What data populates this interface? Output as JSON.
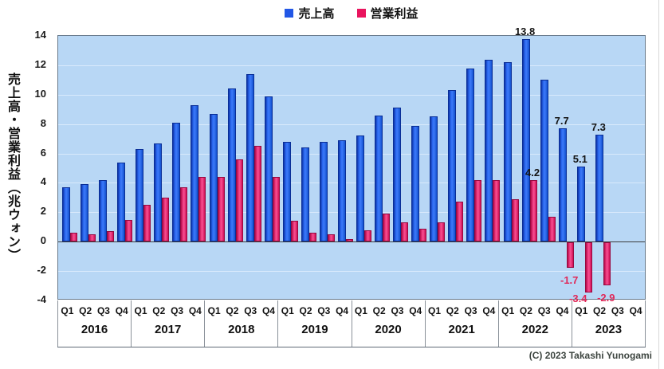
{
  "legend": {
    "items": [
      {
        "label": "売上高",
        "color": "#2257e6"
      },
      {
        "label": "営業利益",
        "color": "#e9145e"
      }
    ]
  },
  "y_axis": {
    "title": "売上高・営業利益（兆ウォン）",
    "ticks": [
      14,
      12,
      10,
      8,
      6,
      4,
      2,
      0,
      -2,
      -4
    ]
  },
  "x_axis": {
    "quarters": [
      "Q1",
      "Q2",
      "Q3",
      "Q4"
    ],
    "years": [
      "2016",
      "2017",
      "2018",
      "2019",
      "2020",
      "2021",
      "2022",
      "2023"
    ]
  },
  "chart_data": {
    "type": "bar",
    "categories": [
      "2016 Q1",
      "2016 Q2",
      "2016 Q3",
      "2016 Q4",
      "2017 Q1",
      "2017 Q2",
      "2017 Q3",
      "2017 Q4",
      "2018 Q1",
      "2018 Q2",
      "2018 Q3",
      "2018 Q4",
      "2019 Q1",
      "2019 Q2",
      "2019 Q3",
      "2019 Q4",
      "2020 Q1",
      "2020 Q2",
      "2020 Q3",
      "2020 Q4",
      "2021 Q1",
      "2021 Q2",
      "2021 Q3",
      "2021 Q4",
      "2022 Q1",
      "2022 Q2",
      "2022 Q3",
      "2022 Q4",
      "2023 Q1",
      "2023 Q2",
      "2023 Q3",
      "2023 Q4"
    ],
    "series": [
      {
        "name": "売上高",
        "color": "#2257e6",
        "values": [
          3.7,
          3.9,
          4.2,
          5.4,
          6.3,
          6.7,
          8.1,
          9.3,
          8.7,
          10.4,
          11.4,
          9.9,
          6.8,
          6.4,
          6.8,
          6.9,
          7.2,
          8.6,
          9.1,
          7.9,
          8.5,
          10.3,
          11.8,
          12.4,
          12.2,
          13.8,
          11.0,
          7.7,
          5.1,
          7.3,
          null,
          null
        ]
      },
      {
        "name": "営業利益",
        "color": "#e9145e",
        "values": [
          0.6,
          0.5,
          0.7,
          1.5,
          2.5,
          3.0,
          3.7,
          4.4,
          4.4,
          5.6,
          6.5,
          4.4,
          1.4,
          0.6,
          0.5,
          0.2,
          0.8,
          1.9,
          1.3,
          0.9,
          1.3,
          2.7,
          4.2,
          4.2,
          2.9,
          4.2,
          1.7,
          -1.7,
          -3.4,
          -2.9,
          null,
          null
        ]
      }
    ],
    "ylim": [
      -4,
      14
    ],
    "grid_interval": 2,
    "legend_position": "top",
    "bar_labels": [
      {
        "series": 0,
        "index": 25,
        "text": "13.8"
      },
      {
        "series": 1,
        "index": 25,
        "text": "4.2"
      },
      {
        "series": 0,
        "index": 27,
        "text": "7.7"
      },
      {
        "series": 1,
        "index": 27,
        "text": "-1.7",
        "dy": 8
      },
      {
        "series": 0,
        "index": 28,
        "text": "5.1"
      },
      {
        "series": 1,
        "index": 28,
        "text": "-3.4",
        "dx": -12,
        "dy": 0
      },
      {
        "series": 0,
        "index": 29,
        "text": "7.3"
      },
      {
        "series": 1,
        "index": 29,
        "text": "-2.9",
        "dy": 8
      }
    ]
  },
  "colors": {
    "plot_bg": "#b8d7f5",
    "gridline": "#d9eafc",
    "zero_line": "#3c3c3c",
    "negative_label": "#e02858"
  },
  "footer": {
    "copyright": "(C)  2023 Takashi Yunogami"
  }
}
